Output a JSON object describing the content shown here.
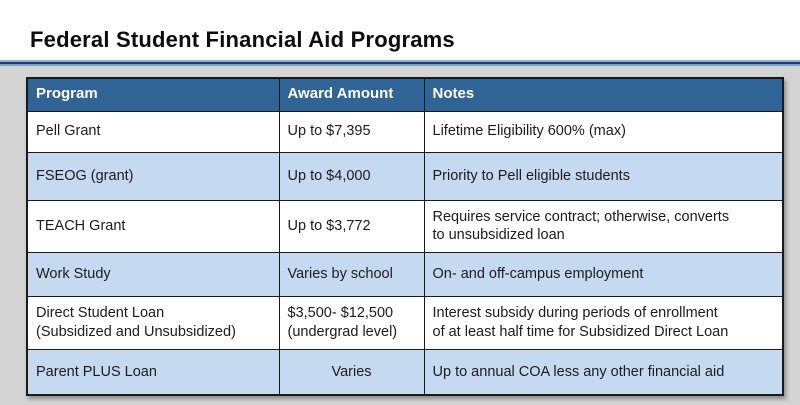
{
  "page": {
    "title": "Federal Student Financial Aid Programs"
  },
  "colors": {
    "header_bg": "#316496",
    "alt_row_bg": "#c5d9f0",
    "canvas_bg": "#d4d4d4",
    "divider_navy": "#1f3c68",
    "divider_light_blue": "#93afd7",
    "header_text": "#ffffff",
    "body_text": "#1c1c1c"
  },
  "table": {
    "headers": [
      "Program",
      "Award Amount",
      "Notes"
    ],
    "rows": [
      {
        "program": "Pell Grant",
        "award": "Up to $7,395",
        "notes": "Lifetime Eligibility 600% (max)"
      },
      {
        "program": "FSEOG (grant)",
        "award": "Up to $4,000",
        "notes": "Priority to Pell eligible students"
      },
      {
        "program": "TEACH Grant",
        "award": "Up to $3,772",
        "notes": "Requires service contract; otherwise, converts\nto unsubsidized loan"
      },
      {
        "program": "Work Study",
        "award": "Varies by school",
        "notes": "On- and off-campus employment"
      },
      {
        "program": "Direct Student Loan\n(Subsidized and Unsubsidized)",
        "award": "$3,500- $12,500\n(undergrad level)",
        "notes": "Interest subsidy during periods of enrollment\nof at least half time for Subsidized Direct Loan"
      },
      {
        "program": "Parent PLUS Loan",
        "award": "Varies",
        "notes": "Up to annual COA less any other financial aid"
      }
    ]
  }
}
